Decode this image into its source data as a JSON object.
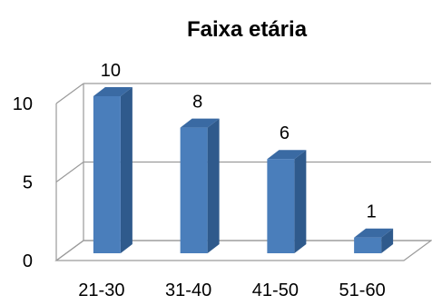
{
  "chart_data": {
    "type": "bar",
    "title": "Faixa etária",
    "xlabel": "",
    "ylabel": "",
    "categories": [
      "21-30",
      "31-40",
      "41-50",
      "51-60"
    ],
    "series": [
      {
        "values": [
          10,
          8,
          6,
          1
        ]
      }
    ],
    "data_labels": [
      "10",
      "8",
      "6",
      "1"
    ],
    "y_ticks": [
      0,
      5,
      10
    ],
    "ylim": [
      0,
      10
    ],
    "grid": true,
    "legend": "none",
    "three_d": true,
    "colors": {
      "bar_front": "#4a7ebb",
      "bar_side": "#2f5a8c",
      "bar_top": "#3a6aa3",
      "grid": "#9a9a9a",
      "wall": "#ffffff"
    }
  }
}
